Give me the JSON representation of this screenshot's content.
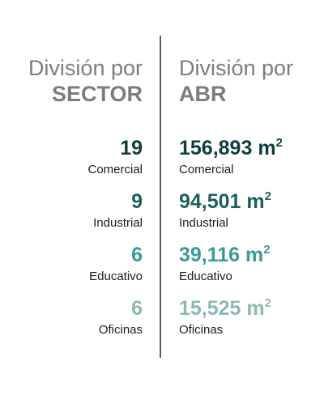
{
  "sector": {
    "heading_line1": "División por",
    "heading_line2": "SECTOR",
    "items": [
      {
        "value": "19",
        "label": "Comercial",
        "color": "#0f3d3d"
      },
      {
        "value": "9",
        "label": "Industrial",
        "color": "#1f5f5f"
      },
      {
        "value": "6",
        "label": "Educativo",
        "color": "#3a9a94"
      },
      {
        "value": "6",
        "label": "Oficinas",
        "color": "#8db8b4"
      }
    ]
  },
  "abr": {
    "heading_line1": "División por",
    "heading_line2": "ABR",
    "unit": "m",
    "unit_exponent": "2",
    "items": [
      {
        "value": "156,893",
        "label": "Comercial",
        "color": "#0f3d3d"
      },
      {
        "value": "94,501",
        "label": "Industrial",
        "color": "#1f5f5f"
      },
      {
        "value": "39,116",
        "label": "Educativo",
        "color": "#3a9a94"
      },
      {
        "value": "15,525",
        "label": "Oficinas",
        "color": "#8db8b4"
      }
    ]
  }
}
